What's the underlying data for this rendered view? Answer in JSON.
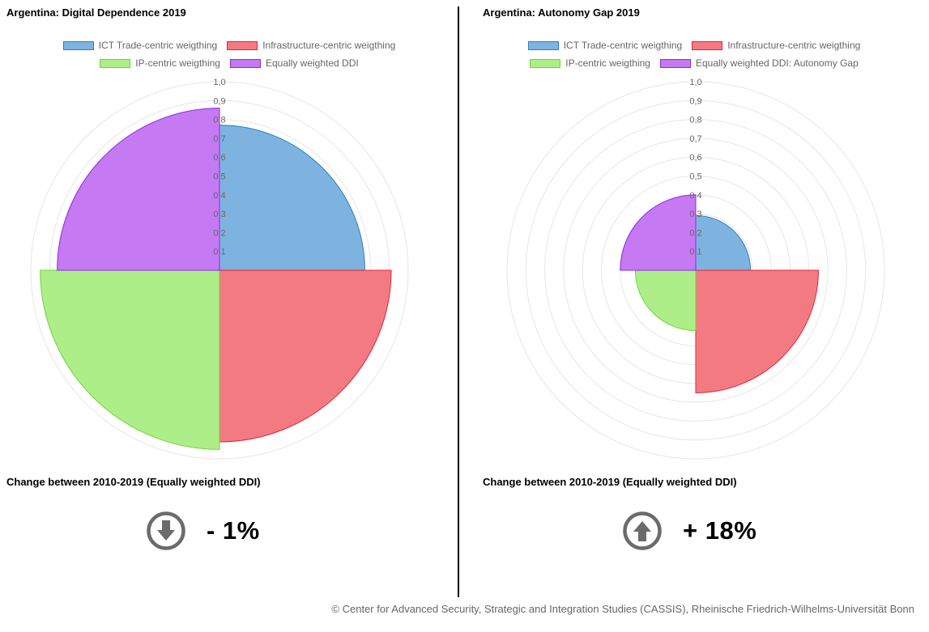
{
  "left": {
    "title": "Argentina: Digital Dependence 2019",
    "change_label": "Change between 2010-2019 (Equally weighted DDI)",
    "change_value": "- 1%",
    "change_direction": "down",
    "legend": [
      "ICT Trade-centric weigthing",
      "Infrastructure-centric weigthing",
      "IP-centric weigthing",
      "Equally weighted DDI"
    ]
  },
  "right": {
    "title": "Argentina: Autonomy Gap 2019",
    "change_label": "Change between 2010-2019 (Equally weighted DDI)",
    "change_value": "+ 18%",
    "change_direction": "up",
    "legend": [
      "ICT Trade-centric weigthing",
      "Infrastructure-centric weigthing",
      "IP-centric weigthing",
      "Equally weighted DDI: Autonomy Gap"
    ]
  },
  "footer": "© Center for Advanced Security, Strategic and Integration Studies (CASSIS), Rheinische Friedrich-Wilhelms-Universität Bonn",
  "icons": {
    "down": "arrow-down-circle-icon",
    "up": "arrow-up-circle-icon"
  },
  "chart_data": [
    {
      "type": "polar-area",
      "title": "Argentina: Digital Dependence 2019",
      "categories": [
        "ICT Trade-centric weigthing",
        "Infrastructure-centric weigthing",
        "IP-centric weigthing",
        "Equally weighted DDI"
      ],
      "values": [
        0.77,
        0.91,
        0.95,
        0.86
      ],
      "colors": [
        "#7eb3e0",
        "#f47a82",
        "#aeee88",
        "#c57af3"
      ],
      "border_colors": [
        "#2a7fc4",
        "#e0233b",
        "#6fd43a",
        "#8a2be2"
      ],
      "rlim": [
        0,
        1
      ],
      "ticks": [
        "0,1",
        "0,2",
        "0,3",
        "0,4",
        "0,5",
        "0,6",
        "0,7",
        "0,8",
        "0,9",
        "1,0"
      ],
      "legend_position": "top"
    },
    {
      "type": "polar-area",
      "title": "Argentina: Autonomy Gap 2019",
      "categories": [
        "ICT Trade-centric weigthing",
        "Infrastructure-centric weigthing",
        "IP-centric weigthing",
        "Equally weighted DDI: Autonomy Gap"
      ],
      "values": [
        0.29,
        0.65,
        0.32,
        0.4
      ],
      "colors": [
        "#7eb3e0",
        "#f47a82",
        "#aeee88",
        "#c57af3"
      ],
      "border_colors": [
        "#2a7fc4",
        "#e0233b",
        "#6fd43a",
        "#8a2be2"
      ],
      "rlim": [
        0,
        1
      ],
      "ticks": [
        "0,1",
        "0,2",
        "0,3",
        "0,4",
        "0,5",
        "0,6",
        "0,7",
        "0,8",
        "0,9",
        "1,0"
      ],
      "legend_position": "top"
    }
  ]
}
